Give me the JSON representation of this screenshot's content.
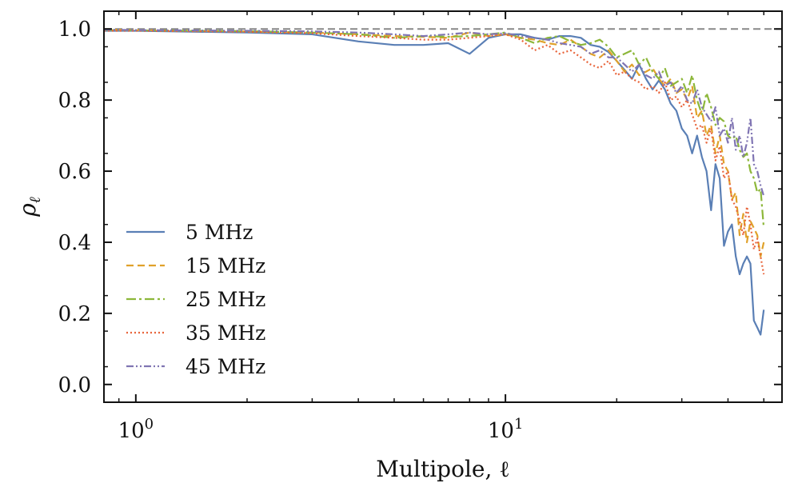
{
  "chart_data": {
    "type": "line",
    "title": "",
    "xlabel": "Multipole, ℓ",
    "ylabel": "ρ",
    "ylabel_sub": "ℓ",
    "xscale": "log",
    "xlim": [
      0.82,
      56
    ],
    "ylim": [
      -0.05,
      1.05
    ],
    "x_ticks": [
      {
        "value": 1,
        "base": "10",
        "exp": "0"
      },
      {
        "value": 10,
        "base": "10",
        "exp": "1"
      }
    ],
    "y_ticks": [
      {
        "value": 0.0,
        "label": "0.0"
      },
      {
        "value": 0.2,
        "label": "0.2"
      },
      {
        "value": 0.4,
        "label": "0.4"
      },
      {
        "value": 0.6,
        "label": "0.6"
      },
      {
        "value": 0.8,
        "label": "0.8"
      },
      {
        "value": 1.0,
        "label": "1.0"
      }
    ],
    "reference_line": {
      "y": 1.0,
      "style": "dashed",
      "color": "#888888"
    },
    "legend_position": "lower-left",
    "series": [
      {
        "name": "5 MHz",
        "color": "#5a7fb5",
        "dash": "solid",
        "x": [
          0.82,
          1,
          2,
          3,
          4,
          5,
          6,
          7,
          8,
          9,
          10,
          11,
          12,
          13,
          14,
          15,
          16,
          17,
          18,
          19,
          20,
          21,
          22,
          23,
          24,
          25,
          26,
          27,
          28,
          29,
          30,
          31,
          32,
          33,
          34,
          35,
          36,
          37,
          38,
          39,
          40,
          41,
          42,
          43,
          44,
          45,
          46,
          47,
          48,
          49,
          50
        ],
        "values": [
          0.995,
          0.995,
          0.99,
          0.985,
          0.965,
          0.955,
          0.955,
          0.96,
          0.93,
          0.975,
          0.985,
          0.985,
          0.975,
          0.97,
          0.98,
          0.98,
          0.975,
          0.955,
          0.95,
          0.935,
          0.91,
          0.885,
          0.86,
          0.9,
          0.86,
          0.83,
          0.855,
          0.83,
          0.79,
          0.77,
          0.72,
          0.7,
          0.65,
          0.7,
          0.64,
          0.6,
          0.49,
          0.62,
          0.58,
          0.39,
          0.43,
          0.45,
          0.36,
          0.31,
          0.34,
          0.36,
          0.34,
          0.18,
          0.16,
          0.14,
          0.21
        ]
      },
      {
        "name": "15 MHz",
        "color": "#e0a12a",
        "dash": "dashed",
        "x": [
          0.82,
          1,
          2,
          3,
          4,
          5,
          6,
          7,
          8,
          9,
          10,
          11,
          12,
          13,
          14,
          15,
          16,
          17,
          18,
          19,
          20,
          21,
          22,
          23,
          24,
          25,
          26,
          27,
          28,
          29,
          30,
          31,
          32,
          33,
          34,
          35,
          36,
          37,
          38,
          39,
          40,
          41,
          42,
          43,
          44,
          45,
          46,
          47,
          48,
          49,
          50
        ],
        "values": [
          0.998,
          0.997,
          0.993,
          0.99,
          0.985,
          0.98,
          0.978,
          0.975,
          0.99,
          0.98,
          0.985,
          0.975,
          0.97,
          0.96,
          0.955,
          0.97,
          0.95,
          0.93,
          0.92,
          0.94,
          0.91,
          0.88,
          0.9,
          0.87,
          0.88,
          0.89,
          0.86,
          0.84,
          0.86,
          0.82,
          0.83,
          0.8,
          0.84,
          0.75,
          0.77,
          0.7,
          0.73,
          0.65,
          0.7,
          0.62,
          0.6,
          0.52,
          0.54,
          0.42,
          0.48,
          0.4,
          0.46,
          0.44,
          0.42,
          0.36,
          0.4
        ]
      },
      {
        "name": "25 MHz",
        "color": "#8db73a",
        "dash": "dashdot",
        "x": [
          0.82,
          1,
          2,
          3,
          4,
          5,
          6,
          7,
          8,
          9,
          10,
          11,
          12,
          13,
          14,
          15,
          16,
          17,
          18,
          19,
          20,
          21,
          22,
          23,
          24,
          25,
          26,
          27,
          28,
          29,
          30,
          31,
          32,
          33,
          34,
          35,
          36,
          37,
          38,
          39,
          40,
          41,
          42,
          43,
          44,
          45,
          46,
          47,
          48,
          49,
          50
        ],
        "values": [
          0.997,
          0.996,
          0.994,
          0.99,
          0.985,
          0.975,
          0.98,
          0.978,
          0.98,
          0.985,
          0.99,
          0.975,
          0.96,
          0.975,
          0.98,
          0.965,
          0.955,
          0.96,
          0.97,
          0.95,
          0.92,
          0.93,
          0.94,
          0.9,
          0.92,
          0.88,
          0.86,
          0.89,
          0.84,
          0.85,
          0.86,
          0.82,
          0.87,
          0.8,
          0.76,
          0.82,
          0.78,
          0.73,
          0.75,
          0.74,
          0.7,
          0.69,
          0.7,
          0.66,
          0.64,
          0.65,
          0.6,
          0.58,
          0.54,
          0.55,
          0.44
        ]
      },
      {
        "name": "35 MHz",
        "color": "#e8643a",
        "dash": "dotted",
        "x": [
          0.82,
          1,
          2,
          3,
          4,
          5,
          6,
          7,
          8,
          9,
          10,
          11,
          12,
          13,
          14,
          15,
          16,
          17,
          18,
          19,
          20,
          21,
          22,
          23,
          24,
          25,
          26,
          27,
          28,
          29,
          30,
          31,
          32,
          33,
          34,
          35,
          36,
          37,
          38,
          39,
          40,
          41,
          42,
          43,
          44,
          45,
          46,
          47,
          48,
          49,
          50
        ],
        "values": [
          0.995,
          0.995,
          0.992,
          0.988,
          0.98,
          0.975,
          0.97,
          0.97,
          0.975,
          0.98,
          0.985,
          0.97,
          0.94,
          0.955,
          0.93,
          0.94,
          0.92,
          0.9,
          0.89,
          0.91,
          0.87,
          0.88,
          0.86,
          0.85,
          0.83,
          0.84,
          0.82,
          0.85,
          0.8,
          0.81,
          0.78,
          0.8,
          0.76,
          0.72,
          0.73,
          0.68,
          0.72,
          0.63,
          0.67,
          0.58,
          0.6,
          0.52,
          0.5,
          0.46,
          0.42,
          0.5,
          0.45,
          0.38,
          0.41,
          0.36,
          0.31
        ]
      },
      {
        "name": "45 MHz",
        "color": "#8075b3",
        "dash": "dashdotdot",
        "x": [
          0.82,
          1,
          2,
          3,
          4,
          5,
          6,
          7,
          8,
          9,
          10,
          11,
          12,
          13,
          14,
          15,
          16,
          17,
          18,
          19,
          20,
          21,
          22,
          23,
          24,
          25,
          26,
          27,
          28,
          29,
          30,
          31,
          32,
          33,
          34,
          35,
          36,
          37,
          38,
          39,
          40,
          41,
          42,
          43,
          44,
          45,
          46,
          47,
          48,
          49,
          50
        ],
        "values": [
          0.998,
          0.997,
          0.995,
          0.993,
          0.99,
          0.985,
          0.98,
          0.985,
          0.99,
          0.985,
          0.988,
          0.98,
          0.975,
          0.97,
          0.96,
          0.955,
          0.95,
          0.93,
          0.94,
          0.92,
          0.92,
          0.9,
          0.88,
          0.9,
          0.87,
          0.86,
          0.88,
          0.84,
          0.85,
          0.82,
          0.84,
          0.8,
          0.79,
          0.83,
          0.78,
          0.76,
          0.74,
          0.78,
          0.7,
          0.72,
          0.68,
          0.75,
          0.66,
          0.7,
          0.64,
          0.68,
          0.75,
          0.62,
          0.6,
          0.56,
          0.53
        ]
      }
    ]
  }
}
